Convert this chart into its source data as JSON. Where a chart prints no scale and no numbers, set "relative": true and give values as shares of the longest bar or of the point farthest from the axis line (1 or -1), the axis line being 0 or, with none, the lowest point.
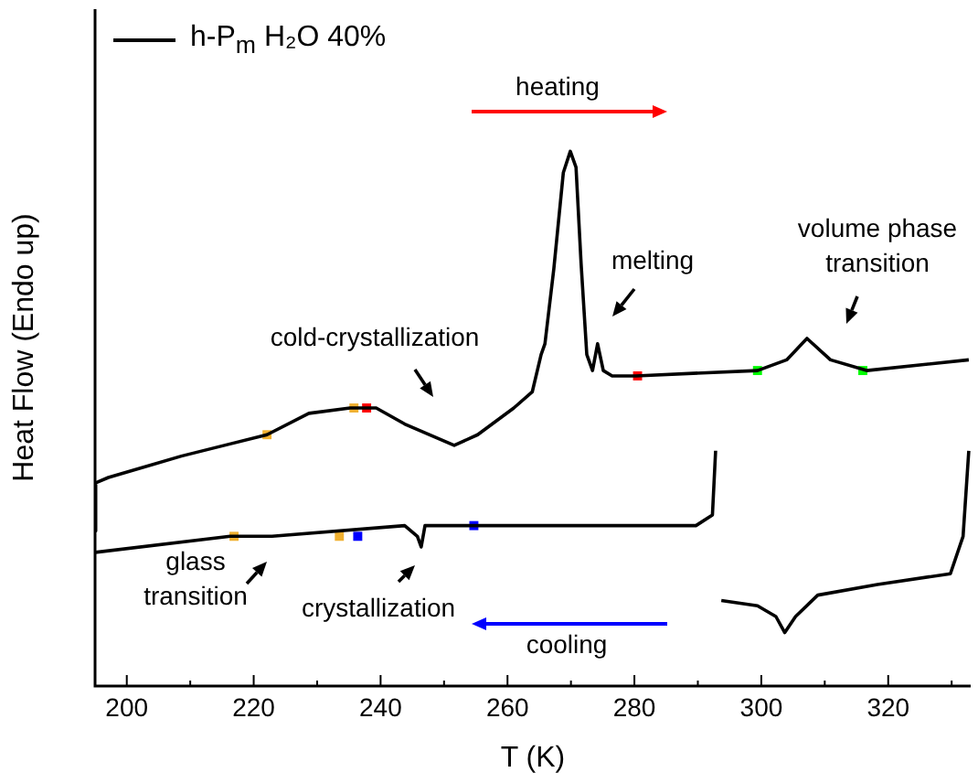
{
  "chart_data": {
    "type": "line",
    "relative": true,
    "xlabel": "T (K)",
    "ylabel": "Heat Flow (Endo up)",
    "xlim": [
      195,
      333
    ],
    "xticks": [
      200,
      {
        "value": 210,
        "label": null
      },
      220,
      {
        "value": 230,
        "label": null
      },
      240,
      {
        "value": 250,
        "label": null
      },
      260,
      {
        "value": 270,
        "label": null
      },
      280,
      {
        "value": 290,
        "label": null
      },
      300,
      {
        "value": 310,
        "label": null
      },
      320,
      {
        "value": 330,
        "label": null
      }
    ],
    "legend": "top left",
    "grid": false,
    "series": [
      {
        "name": "h-P$_{m}$ H₂O 40%",
        "color": "#000000",
        "x": [
          195.0,
          195.1,
          197.1,
          208.6,
          222.1,
          228.7,
          235.2,
          239.3,
          243.8,
          251.6,
          255.3,
          261.0,
          263.9,
          265.3,
          265.9,
          267.3,
          268.8,
          269.9,
          270.8,
          271.6,
          272.5,
          273.4,
          274.2,
          275.1,
          276.5,
          280.2,
          299.4,
          304.0,
          307.2,
          310.9,
          316.6,
          332.7
        ],
        "values": [
          0.29,
          0.38,
          0.39,
          0.43,
          0.47,
          0.51,
          0.52,
          0.52,
          0.49,
          0.45,
          0.47,
          0.52,
          0.55,
          0.62,
          0.64,
          0.78,
          0.96,
          1.0,
          0.97,
          0.79,
          0.62,
          0.59,
          0.64,
          0.59,
          0.58,
          0.58,
          0.59,
          0.61,
          0.65,
          0.61,
          0.59,
          0.61
        ]
      },
      {
        "color": "#000000",
        "x": [
          195.0,
          216.3,
          222.9,
          243.8,
          245.8,
          246.4,
          247.0,
          265.9,
          289.7,
          292.3,
          292.8,
          293.2,
          293.7,
          299.4,
          302.3,
          303.7,
          305.4,
          308.9,
          318.3,
          329.8,
          331.8,
          332.7
        ],
        "values": [
          0.25,
          0.28,
          0.28,
          0.3,
          0.28,
          0.26,
          0.3,
          0.3,
          0.3,
          0.32,
          0.44,
          null,
          0.16,
          0.15,
          0.13,
          0.1,
          0.13,
          0.17,
          0.19,
          0.21,
          0.28,
          0.44
        ]
      },
      {
        "type": "scatter",
        "marker": "square",
        "color": "#f0b030",
        "x": [
          222.1,
          235.8,
          216.9,
          233.5
        ],
        "values": [
          0.47,
          0.52,
          0.28,
          0.28
        ]
      },
      {
        "type": "scatter",
        "marker": "square",
        "color": "#ff0000",
        "x": [
          237.8,
          280.5
        ],
        "values": [
          0.52,
          0.58
        ]
      },
      {
        "type": "scatter",
        "marker": "square",
        "color": "#00ff00",
        "x": [
          299.4,
          316.0
        ],
        "values": [
          0.59,
          0.59
        ]
      },
      {
        "type": "scatter",
        "marker": "square",
        "color": "#0000ff",
        "x": [
          236.4,
          254.7
        ],
        "values": [
          0.28,
          0.3
        ]
      }
    ],
    "annotations": [
      "heating",
      "melting",
      "cold-crystallization",
      "volume phase\ntransition",
      "glass\ntransition",
      "crystallization",
      "cooling"
    ]
  }
}
